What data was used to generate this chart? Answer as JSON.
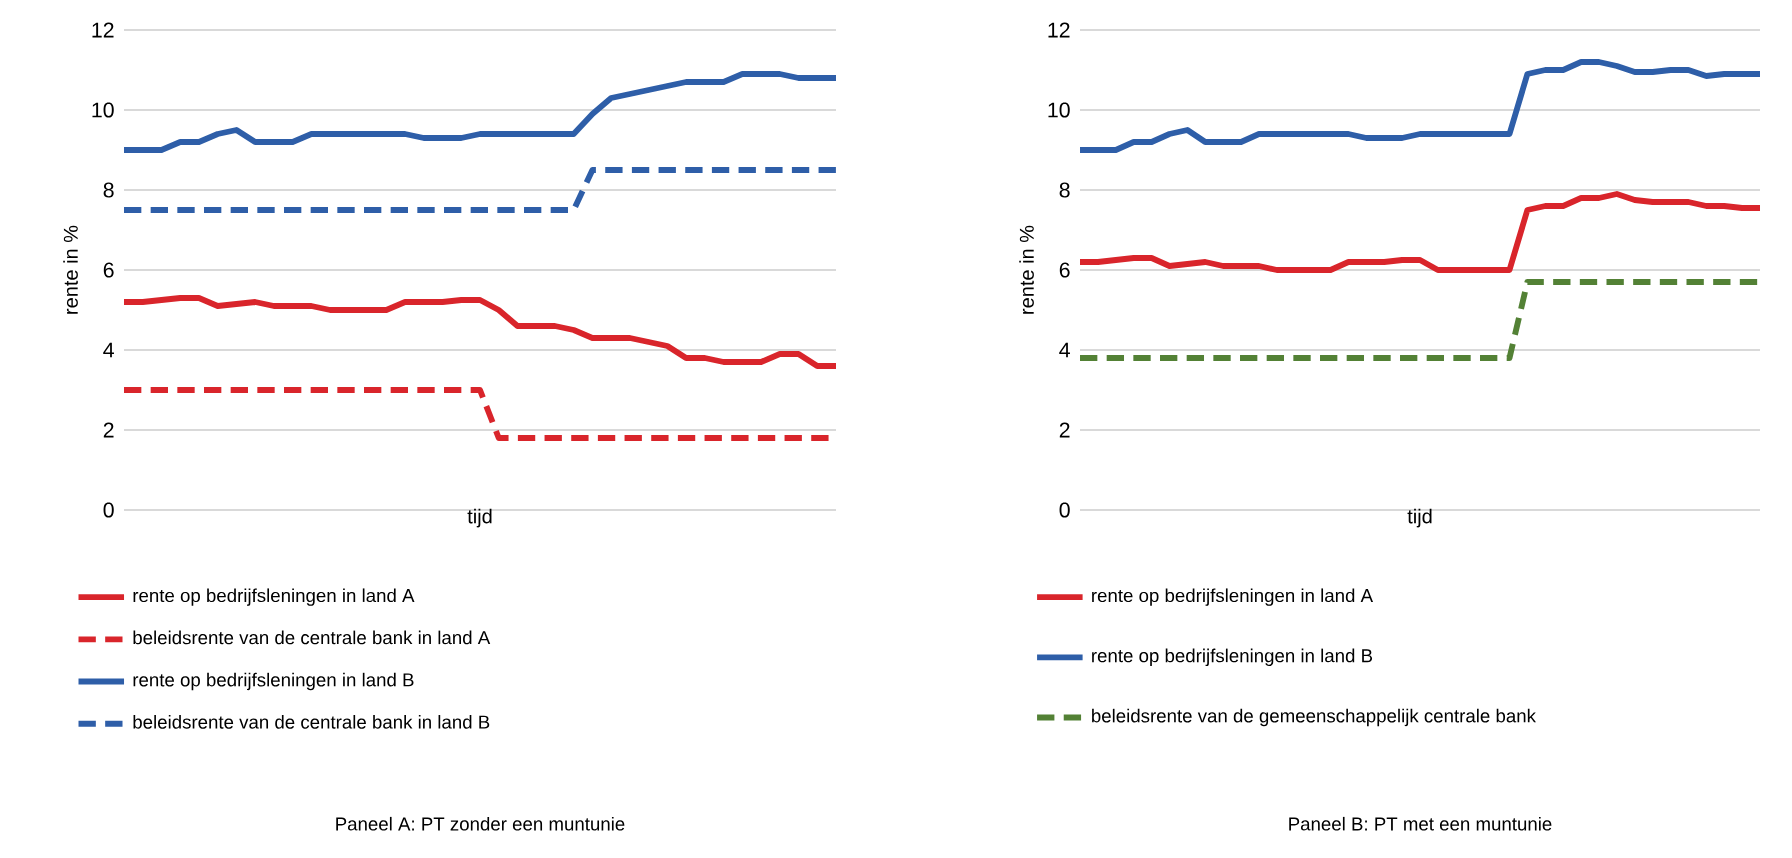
{
  "chart_data": [
    {
      "type": "line",
      "xlabel": "tijd",
      "ylabel": "rente in %",
      "annotations": [
        "Paneel A: PT zonder een muntunie"
      ],
      "categories": [
        null,
        null,
        null,
        null,
        null,
        null,
        null,
        null,
        null,
        null,
        null,
        null,
        null,
        null,
        null,
        null,
        null,
        null,
        null,
        null,
        null,
        null,
        null,
        null,
        null,
        null,
        null,
        null,
        null,
        null,
        null,
        null,
        null,
        null,
        null,
        null,
        null,
        null,
        null
      ],
      "ylim": [
        0,
        12
      ],
      "yticks": [
        0,
        2,
        4,
        6,
        8,
        10,
        12
      ],
      "grid": "y",
      "legend": "bottom",
      "series": [
        {
          "name": "rente op bedrijfsleningen in land A",
          "color": "#d9252b",
          "line_style": "solid",
          "values": [
            5.2,
            5.2,
            5.25,
            5.3,
            5.3,
            5.1,
            5.15,
            5.2,
            5.1,
            5.1,
            5.1,
            5.0,
            5.0,
            5.0,
            5.0,
            5.2,
            5.2,
            5.2,
            5.25,
            5.25,
            5.0,
            4.6,
            4.6,
            4.6,
            4.5,
            4.3,
            4.3,
            4.3,
            4.2,
            4.1,
            3.8,
            3.8,
            3.7,
            3.7,
            3.7,
            3.9,
            3.9,
            3.6,
            3.6
          ]
        },
        {
          "name": "beleidsrente van de centrale bank in land A",
          "color": "#d9252b",
          "line_style": "dashed",
          "values": [
            3,
            3,
            3,
            3,
            3,
            3,
            3,
            3,
            3,
            3,
            3,
            3,
            3,
            3,
            3,
            3,
            3,
            3,
            3,
            3,
            1.8,
            1.8,
            1.8,
            1.8,
            1.8,
            1.8,
            1.8,
            1.8,
            1.8,
            1.8,
            1.8,
            1.8,
            1.8,
            1.8,
            1.8,
            1.8,
            1.8,
            1.8,
            1.8
          ]
        },
        {
          "name": "rente op bedrijfsleningen in land B",
          "color": "#2e5ea8",
          "line_style": "solid",
          "values": [
            9.0,
            9.0,
            9.0,
            9.2,
            9.2,
            9.4,
            9.5,
            9.2,
            9.2,
            9.2,
            9.4,
            9.4,
            9.4,
            9.4,
            9.4,
            9.4,
            9.3,
            9.3,
            9.3,
            9.4,
            9.4,
            9.4,
            9.4,
            9.4,
            9.4,
            9.9,
            10.3,
            10.4,
            10.5,
            10.6,
            10.7,
            10.7,
            10.7,
            10.9,
            10.9,
            10.9,
            10.8,
            10.8,
            10.8
          ]
        },
        {
          "name": "beleidsrente van de centrale bank in land B",
          "color": "#2e5ea8",
          "line_style": "dashed",
          "values": [
            7.5,
            7.5,
            7.5,
            7.5,
            7.5,
            7.5,
            7.5,
            7.5,
            7.5,
            7.5,
            7.5,
            7.5,
            7.5,
            7.5,
            7.5,
            7.5,
            7.5,
            7.5,
            7.5,
            7.5,
            7.5,
            7.5,
            7.5,
            7.5,
            7.5,
            8.5,
            8.5,
            8.5,
            8.5,
            8.5,
            8.5,
            8.5,
            8.5,
            8.5,
            8.5,
            8.5,
            8.5,
            8.5,
            8.5
          ]
        }
      ]
    },
    {
      "type": "line",
      "xlabel": "tijd",
      "ylabel": "rente in %",
      "annotations": [
        "Paneel B: PT met een muntunie"
      ],
      "categories": [
        null,
        null,
        null,
        null,
        null,
        null,
        null,
        null,
        null,
        null,
        null,
        null,
        null,
        null,
        null,
        null,
        null,
        null,
        null,
        null,
        null,
        null,
        null,
        null,
        null,
        null,
        null,
        null,
        null,
        null,
        null,
        null,
        null,
        null,
        null,
        null,
        null,
        null,
        null
      ],
      "ylim": [
        0,
        12
      ],
      "yticks": [
        0,
        2,
        4,
        6,
        8,
        10,
        12
      ],
      "grid": "y",
      "legend": "bottom",
      "series": [
        {
          "name": "rente op bedrijfsleningen in land A",
          "color": "#d9252b",
          "line_style": "solid",
          "values": [
            6.2,
            6.2,
            6.25,
            6.3,
            6.3,
            6.1,
            6.15,
            6.2,
            6.1,
            6.1,
            6.1,
            6.0,
            6.0,
            6.0,
            6.0,
            6.2,
            6.2,
            6.2,
            6.25,
            6.25,
            6.0,
            6.0,
            6.0,
            6.0,
            6.0,
            7.5,
            7.6,
            7.6,
            7.8,
            7.8,
            7.9,
            7.75,
            7.7,
            7.7,
            7.7,
            7.6,
            7.6,
            7.55,
            7.55
          ]
        },
        {
          "name": "rente op bedrijfsleningen in land B",
          "color": "#2e5ea8",
          "line_style": "solid",
          "values": [
            9.0,
            9.0,
            9.0,
            9.2,
            9.2,
            9.4,
            9.5,
            9.2,
            9.2,
            9.2,
            9.4,
            9.4,
            9.4,
            9.4,
            9.4,
            9.4,
            9.3,
            9.3,
            9.3,
            9.4,
            9.4,
            9.4,
            9.4,
            9.4,
            9.4,
            10.9,
            11.0,
            11.0,
            11.2,
            11.2,
            11.1,
            10.95,
            10.95,
            11.0,
            11.0,
            10.85,
            10.9,
            10.9,
            10.9
          ]
        },
        {
          "name": "beleidsrente van de gemeenschappelijk centrale bank",
          "color": "#538135",
          "line_style": "dashed",
          "values": [
            3.8,
            3.8,
            3.8,
            3.8,
            3.8,
            3.8,
            3.8,
            3.8,
            3.8,
            3.8,
            3.8,
            3.8,
            3.8,
            3.8,
            3.8,
            3.8,
            3.8,
            3.8,
            3.8,
            3.8,
            3.8,
            3.8,
            3.8,
            3.8,
            3.8,
            5.7,
            5.7,
            5.7,
            5.7,
            5.7,
            5.7,
            5.7,
            5.7,
            5.7,
            5.7,
            5.7,
            5.7,
            5.7,
            5.7
          ]
        }
      ]
    }
  ]
}
